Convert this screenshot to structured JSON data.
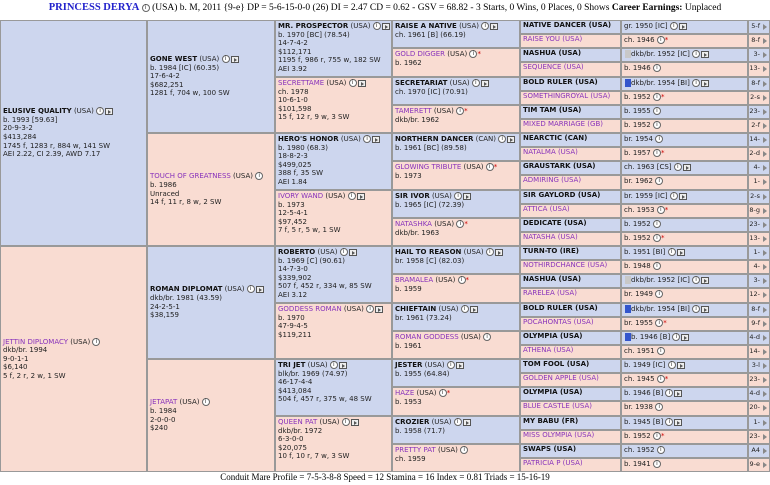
{
  "header": {
    "horse_name": "PRINCESS DERYA",
    "info": "(USA) b. M, 2011 {9-e} DP = 5-6-15-0-0 (26) DI = 2.47 CD = 0.62 - GSV = 68.82 - 3 Starts, 0 Wins, 0 Places, 0 Shows",
    "earnings_label": "Career Earnings:",
    "earnings_value": "Unplaced"
  },
  "footer": "Conduit Mare Profile = 7-5-3-8-8  Speed = 12  Stamina = 16  Index = 0.81  Triads = 15-16-19",
  "gen1": [
    {
      "name": "ELUSIVE QUALITY",
      "tag": "(USA)",
      "lines": [
        "b. 1993 [59.63]",
        "20-9-3-2",
        "$413,284",
        "1745 f, 1283 r, 884 w, 141 SW",
        "AEI 2.22, CI 2.39, AWD 7.17"
      ]
    },
    {
      "name": "JETTIN DIPLOMACY",
      "tag": "(USA)",
      "lines": [
        "dkb/br. 1994",
        "9-0-1-1",
        "$6,140",
        "5 f, 2 r, 2 w, 1 SW"
      ]
    }
  ],
  "gen2": [
    {
      "name": "GONE WEST",
      "tag": "(USA)",
      "lines": [
        "b. 1984 [IC] (60.35)",
        "17-6-4-2",
        "$682,251",
        "1281 f, 704 w, 100 SW"
      ]
    },
    {
      "name": "TOUCH OF GREATNESS",
      "tag": "(USA)",
      "lines": [
        "b. 1986",
        "Unraced",
        "14 f, 11 r, 8 w, 2 SW"
      ]
    },
    {
      "name": "ROMAN DIPLOMAT",
      "tag": "(USA)",
      "lines": [
        "dkb/br. 1981 (43.59)",
        "24-2-5-1",
        "$38,159"
      ]
    },
    {
      "name": "JETAPAT",
      "tag": "(USA)",
      "lines": [
        "b. 1984",
        "2-0-0-0",
        "$240"
      ]
    }
  ],
  "gen3": [
    {
      "name": "MR. PROSPECTOR",
      "tag": "(USA)",
      "lines": [
        "b. 1970 [BC] (78.54)",
        "14-7-4-2",
        "$112,171",
        "1195 f, 986 r, 755 w, 182 SW",
        "AEI 3.92"
      ]
    },
    {
      "name": "SECRETTAME",
      "tag": "(USA)",
      "lines": [
        "ch. 1978",
        "10-6-1-0",
        "$101,598",
        "15 f, 12 r, 9 w, 3 SW"
      ]
    },
    {
      "name": "HERO'S HONOR",
      "tag": "(USA)",
      "lines": [
        "b. 1980 (68.3)",
        "18-8-2-3",
        "$499,025",
        "388 f, 35 SW",
        "AEI 1.84"
      ]
    },
    {
      "name": "IVORY WAND",
      "tag": "(USA)",
      "lines": [
        "b. 1973",
        "12-5-4-1",
        "$97,452",
        "7 f, 5 r, 5 w, 1 SW"
      ]
    },
    {
      "name": "ROBERTO",
      "tag": "(USA)",
      "lines": [
        "b. 1969 [C] (90.61)",
        "14-7-3-0",
        "$339,902",
        "507 f, 452 r, 334 w, 85 SW",
        "AEI 3.12"
      ]
    },
    {
      "name": "GODDESS ROMAN",
      "tag": "(USA)",
      "lines": [
        "b. 1970",
        "47-9-4-5",
        "$119,211"
      ]
    },
    {
      "name": "TRI JET",
      "tag": "(USA)",
      "lines": [
        "blk/br. 1969 (74.97)",
        "46-17-4-4",
        "$413,084",
        "504 f, 457 r, 375 w, 48 SW"
      ]
    },
    {
      "name": "QUEEN PAT",
      "tag": "(USA)",
      "lines": [
        "dkb/br. 1972",
        "6-3-0-0",
        "$20,075",
        "10 f, 10 r, 7 w, 3 SW"
      ]
    }
  ],
  "gen4": [
    {
      "name": "RAISE A NATIVE",
      "tag": "(USA)",
      "lines": [
        "ch. 1961 [B] (66.19)"
      ]
    },
    {
      "name": "GOLD DIGGER",
      "tag": "(USA)",
      "lines": [
        "b. 1962"
      ]
    },
    {
      "name": "SECRETARIAT",
      "tag": "(USA)",
      "lines": [
        "ch. 1970 [IC] (70.91)"
      ]
    },
    {
      "name": "TAMERETT",
      "tag": "(USA)",
      "lines": [
        "dkb/br. 1962"
      ]
    },
    {
      "name": "NORTHERN DANCER",
      "tag": "(CAN)",
      "lines": [
        "b. 1961 [BC] (89.58)"
      ]
    },
    {
      "name": "GLOWING TRIBUTE",
      "tag": "(USA)",
      "lines": [
        "b. 1973"
      ]
    },
    {
      "name": "SIR IVOR",
      "tag": "(USA)",
      "lines": [
        "b. 1965 [IC] (72.39)"
      ]
    },
    {
      "name": "NATASHKA",
      "tag": "(USA)",
      "lines": [
        "dkb/br. 1963"
      ]
    },
    {
      "name": "HAIL TO REASON",
      "tag": "(USA)",
      "lines": [
        "br. 1958 [C] (82.03)"
      ]
    },
    {
      "name": "BRAMALEA",
      "tag": "(USA)",
      "lines": [
        "b. 1959"
      ]
    },
    {
      "name": "CHIEFTAIN",
      "tag": "(USA)",
      "lines": [
        "br. 1961 (73.24)"
      ]
    },
    {
      "name": "ROMAN GODDESS",
      "tag": "(USA)",
      "lines": [
        "b. 1961"
      ]
    },
    {
      "name": "JESTER",
      "tag": "(USA)",
      "lines": [
        "b. 1955 (64.84)"
      ]
    },
    {
      "name": "HAZE",
      "tag": "(USA)",
      "lines": [
        "b. 1953"
      ]
    },
    {
      "name": "CROZIER",
      "tag": "(USA)",
      "lines": [
        "b. 1958 (71.7)"
      ]
    },
    {
      "name": "PRETTY PAT",
      "tag": "(USA)",
      "lines": [
        "ch. 1959"
      ]
    }
  ],
  "gen5": [
    {
      "name": "NATIVE DANCER (USA)",
      "info": "gr. 1950 [IC]",
      "family": "5-f"
    },
    {
      "name": "RAISE YOU (USA)",
      "info": "ch. 1946",
      "family": "8-f"
    },
    {
      "name": "NASHUA (USA)",
      "info": "dkb/br. 1952 [IC]",
      "family": "3-m"
    },
    {
      "name": "SEQUENCE (USA)",
      "info": "b. 1946",
      "family": "13-c"
    },
    {
      "name": "BOLD RULER (USA)",
      "info": "dkb/br. 1954 [BI]",
      "family": "8-f"
    },
    {
      "name": "SOMETHINGROYAL (USA)",
      "info": "b. 1952",
      "family": "2-s"
    },
    {
      "name": "TIM TAM (USA)",
      "info": "b. 1955",
      "family": "23-b"
    },
    {
      "name": "MIXED MARRIAGE (GB)",
      "info": "b. 1952",
      "family": "2-f"
    },
    {
      "name": "NEARCTIC (CAN)",
      "info": "br. 1954",
      "family": "14-c"
    },
    {
      "name": "NATALMA (USA)",
      "info": "b. 1957",
      "family": "2-d"
    },
    {
      "name": "GRAUSTARK (USA)",
      "info": "ch. 1963 [CS]",
      "family": "4-m"
    },
    {
      "name": "ADMIRING (USA)",
      "info": "br. 1962",
      "family": "1-w"
    },
    {
      "name": "SIR GAYLORD (USA)",
      "info": "br. 1959 [IC]",
      "family": "2-s"
    },
    {
      "name": "ATTICA (USA)",
      "info": "ch. 1953",
      "family": "8-g"
    },
    {
      "name": "DEDICATE (USA)",
      "info": "b. 1952",
      "family": "23-b"
    },
    {
      "name": "NATASHA (USA)",
      "info": "b. 1952",
      "family": "13-c"
    },
    {
      "name": "TURN-TO (IRE)",
      "info": "b. 1951 [BI]",
      "family": "1-w"
    },
    {
      "name": "NOTHIRDCHANCE (USA)",
      "info": "b. 1948",
      "family": "4-m"
    },
    {
      "name": "NASHUA (USA)",
      "info": "dkb/br. 1952 [IC]",
      "family": "3-m"
    },
    {
      "name": "RARELEA (USA)",
      "info": "br. 1949",
      "family": "12-c"
    },
    {
      "name": "BOLD RULER (USA)",
      "info": "dkb/br. 1954 [BI]",
      "family": "8-f"
    },
    {
      "name": "POCAHONTAS (USA)",
      "info": "br. 1955",
      "family": "9-f"
    },
    {
      "name": "OLYMPIA (USA)",
      "info": "b. 1946 [B]",
      "family": "4-d"
    },
    {
      "name": "ATHENA (USA)",
      "info": "ch. 1951",
      "family": "14-c"
    },
    {
      "name": "TOM FOOL (USA)",
      "info": "b. 1949 [IC]",
      "family": "3-l"
    },
    {
      "name": "GOLDEN APPLE (USA)",
      "info": "ch. 1945",
      "family": "23-b"
    },
    {
      "name": "OLYMPIA (USA)",
      "info": "b. 1946 [B]",
      "family": "4-d"
    },
    {
      "name": "BLUE CASTLE (USA)",
      "info": "br. 1938",
      "family": "20-c"
    },
    {
      "name": "MY BABU (FR)",
      "info": "b. 1945 [B]",
      "family": "1-w"
    },
    {
      "name": "MISS OLYMPIA (USA)",
      "info": "b. 1952",
      "family": "23-b"
    },
    {
      "name": "SWAPS (USA)",
      "info": "ch. 1952",
      "family": "A4"
    },
    {
      "name": "PATRICIA P (USA)",
      "info": "b. 1941",
      "family": "9-e"
    }
  ],
  "swatch_colors": {
    "light": "#c8c8c8",
    "blue": "#3355cc"
  }
}
